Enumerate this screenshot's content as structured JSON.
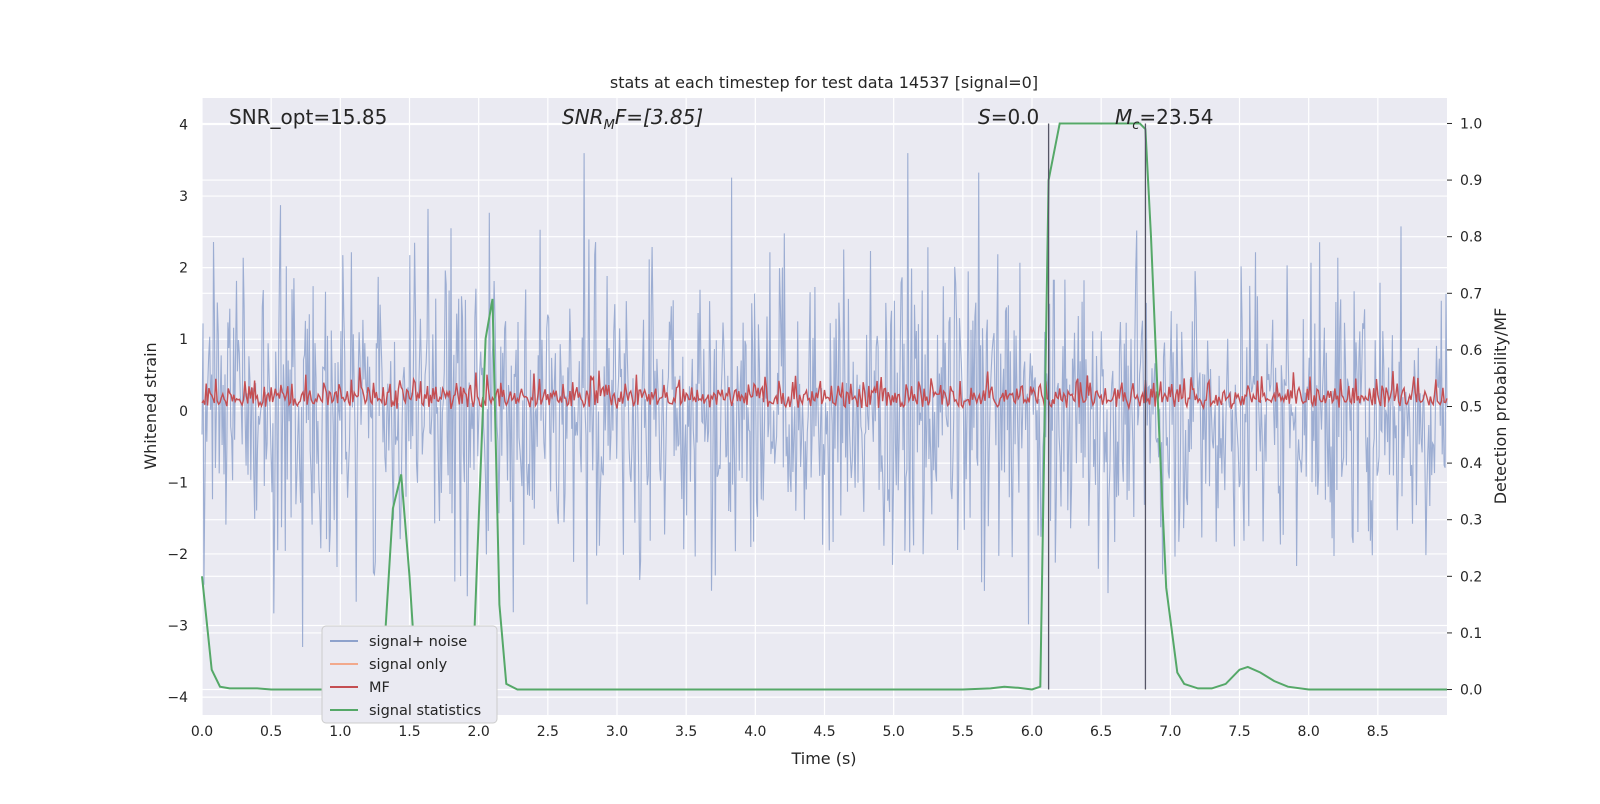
{
  "chart_data": {
    "type": "line",
    "title": "stats at each timestep for test data 14537 [signal=0]",
    "xlabel": "Time (s)",
    "ylabel": "Whitened strain",
    "y2label": "Detection probability/MF",
    "xlim": [
      0.0,
      9.0
    ],
    "ylim": [
      -4.25,
      4.37
    ],
    "y2lim": [
      -0.045,
      1.045
    ],
    "x_ticks": [
      "0.0",
      "0.5",
      "1.0",
      "1.5",
      "2.0",
      "2.5",
      "3.0",
      "3.5",
      "4.0",
      "4.5",
      "5.0",
      "5.5",
      "6.0",
      "6.5",
      "7.0",
      "7.5",
      "8.0",
      "8.5"
    ],
    "y_ticks": [
      "4",
      "3",
      "2",
      "1",
      "0",
      "−1",
      "−2",
      "−3",
      "−4"
    ],
    "y2_ticks": [
      "1.0",
      "0.9",
      "0.8",
      "0.7",
      "0.6",
      "0.5",
      "0.4",
      "0.3",
      "0.2",
      "0.1",
      "0.0"
    ],
    "grid": true,
    "legend_position": "lower-left",
    "annotations": {
      "snr_opt": "SNR_opt=15.85",
      "snr_mf_base": "SNR",
      "snr_mf_sub": "M",
      "snr_mf_rest": "F=[3.85]",
      "s_label": "S",
      "s_value": "=0.0",
      "mc_base": "M",
      "mc_sub": "c",
      "mc_value": "=23.54"
    },
    "vertical_lines_x": [
      6.12,
      6.82
    ],
    "series": [
      {
        "name": "signal+ noise",
        "color": "#8ea2cc",
        "axis": "left",
        "description_values": "whitened noise, roughly ±1.5 dense band, peaks up to 3.6 and down to -3.3"
      },
      {
        "name": "signal only",
        "color": "#f2a98c",
        "axis": "left"
      },
      {
        "name": "MF",
        "color": "#c44e52",
        "axis": "right",
        "range": [
          0.49,
          0.6
        ]
      },
      {
        "name": "signal statistics",
        "color": "#55a868",
        "axis": "right",
        "x": [
          0.0,
          0.07,
          0.13,
          0.2,
          0.3,
          0.4,
          0.5,
          0.6,
          0.7,
          0.8,
          0.9,
          1.0,
          1.1,
          1.2,
          1.3,
          1.38,
          1.44,
          1.5,
          1.55,
          1.6,
          1.7,
          1.8,
          1.9,
          1.96,
          2.0,
          2.05,
          2.1,
          2.15,
          2.2,
          2.28,
          2.35,
          2.5,
          3.0,
          3.5,
          4.0,
          4.5,
          5.0,
          5.5,
          5.7,
          5.8,
          5.9,
          6.0,
          6.06,
          6.12,
          6.2,
          6.3,
          6.5,
          6.7,
          6.78,
          6.82,
          6.86,
          6.92,
          6.97,
          7.05,
          7.1,
          7.2,
          7.3,
          7.4,
          7.5,
          7.56,
          7.65,
          7.75,
          7.85,
          8.0,
          8.5,
          9.0
        ],
        "y": [
          0.2,
          0.035,
          0.005,
          0.002,
          0.002,
          0.002,
          0.0,
          0.0,
          0.0,
          0.0,
          0.0,
          0.0,
          0.0,
          0.0,
          0.0,
          0.32,
          0.38,
          0.2,
          0.01,
          0.0,
          0.0,
          0.0,
          0.0,
          0.04,
          0.3,
          0.62,
          0.69,
          0.15,
          0.01,
          0.0,
          0.0,
          0.0,
          0.0,
          0.0,
          0.0,
          0.0,
          0.0,
          0.0,
          0.002,
          0.005,
          0.003,
          0.0,
          0.005,
          0.9,
          1.0,
          1.0,
          1.0,
          1.0,
          1.0,
          0.99,
          0.8,
          0.45,
          0.18,
          0.03,
          0.01,
          0.002,
          0.002,
          0.01,
          0.035,
          0.04,
          0.03,
          0.015,
          0.005,
          0.0,
          0.0,
          0.0
        ]
      }
    ]
  }
}
